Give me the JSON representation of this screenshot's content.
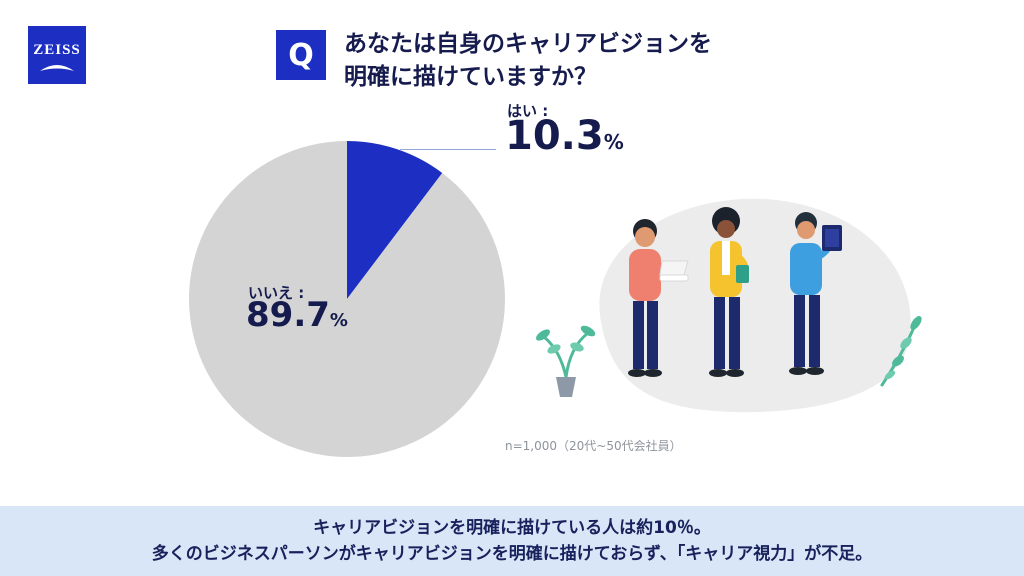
{
  "brand": {
    "logo_text": "ZEISS",
    "logo_color": "#1c2fc2"
  },
  "question": {
    "badge": "Q",
    "line1": "あなたは自身のキャリアビジョンを",
    "line2": "明確に描けていますか？"
  },
  "chart_data": {
    "type": "pie",
    "title": "あなたは自身のキャリアビジョンを明確に描けていますか？",
    "unit": "%",
    "start_angle_deg": 0,
    "slices": [
      {
        "label": "はい",
        "value": 10.3,
        "color": "#1c2fc2"
      },
      {
        "label": "いいえ",
        "value": 89.7,
        "color": "#d4d4d4"
      }
    ],
    "note": "n=1,000（20代~50代会社員）",
    "legend_position": "callout-labels"
  },
  "labels": {
    "yes_label": "はい :",
    "yes_value": "10.3",
    "yes_unit": "%",
    "no_label": "いいえ :",
    "no_value": "89.7",
    "no_unit": "%"
  },
  "sample_note": "n=1,000（20代~50代会社員）",
  "footer": {
    "background": "#d8e6f7",
    "line1": "キャリアビジョンを明確に描けている人は約10％。",
    "line2": "多くのビジネスパーソンがキャリアビジョンを明確に描けておらず、「キャリア視力」が不足。"
  }
}
